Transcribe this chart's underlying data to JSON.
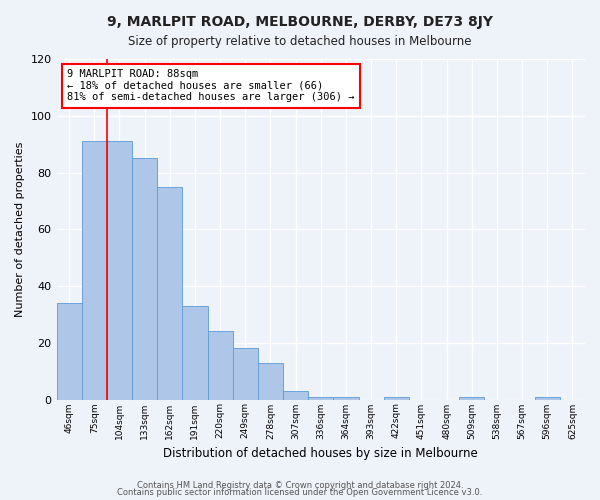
{
  "title": "9, MARLPIT ROAD, MELBOURNE, DERBY, DE73 8JY",
  "subtitle": "Size of property relative to detached houses in Melbourne",
  "xlabel": "Distribution of detached houses by size in Melbourne",
  "ylabel": "Number of detached properties",
  "bar_labels": [
    "46sqm",
    "75sqm",
    "104sqm",
    "133sqm",
    "162sqm",
    "191sqm",
    "220sqm",
    "249sqm",
    "278sqm",
    "307sqm",
    "336sqm",
    "364sqm",
    "393sqm",
    "422sqm",
    "451sqm",
    "480sqm",
    "509sqm",
    "538sqm",
    "567sqm",
    "596sqm",
    "625sqm"
  ],
  "bar_heights": [
    34,
    91,
    91,
    85,
    75,
    33,
    24,
    18,
    13,
    3,
    1,
    1,
    0,
    1,
    0,
    0,
    1,
    0,
    0,
    1,
    0
  ],
  "bar_color": "#aec6e8",
  "bar_edge_color": "#5b9bd5",
  "annotation_title": "9 MARLPIT ROAD: 88sqm",
  "annotation_line1": "← 18% of detached houses are smaller (66)",
  "annotation_line2": "81% of semi-detached houses are larger (306) →",
  "annotation_box_color": "white",
  "annotation_box_edge_color": "red",
  "line_color": "red",
  "ylim": [
    0,
    120
  ],
  "yticks": [
    0,
    20,
    40,
    60,
    80,
    100,
    120
  ],
  "footer1": "Contains HM Land Registry data © Crown copyright and database right 2024.",
  "footer2": "Contains public sector information licensed under the Open Government Licence v3.0.",
  "background_color": "#eef2f9",
  "grid_color": "white"
}
